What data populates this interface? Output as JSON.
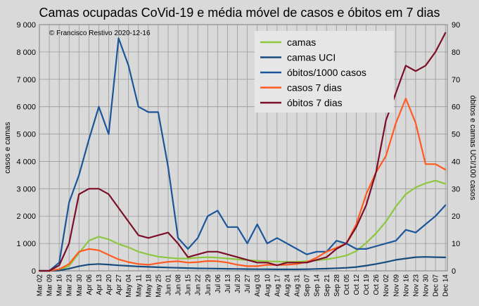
{
  "chart_data": {
    "type": "line",
    "title": "Camas ocupadas CoVid-19 e média móvel de casos e óbitos em 7 dias",
    "credit": "© Francisco Restivo 2020-12-16",
    "ylabel_left": "casos e camas",
    "ylabel_right": "óbitos e camas UCI/100 casos",
    "ylim_left": [
      0,
      9000
    ],
    "ylim_right": [
      0,
      90
    ],
    "yticks_left": [
      "0",
      "1 000",
      "2 000",
      "3 000",
      "4 000",
      "5 000",
      "6 000",
      "7 000",
      "8 000",
      "9 000"
    ],
    "yticks_right": [
      "0",
      "10",
      "20",
      "30",
      "40",
      "50",
      "60",
      "70",
      "80",
      "90"
    ],
    "x_dates": [
      "Mar 02",
      "Mar 09",
      "Mar 16",
      "Mar 23",
      "Mar 30",
      "Apr 06",
      "Apr 13",
      "Apr 20",
      "Apr 27",
      "May 04",
      "May 11",
      "May 18",
      "May 25",
      "Jun 01",
      "Jun 08",
      "Jun 15",
      "Jun 22",
      "Jun 29",
      "Jul 06",
      "Jul 13",
      "Jul 20",
      "Jul 27",
      "Aug 03",
      "Aug 10",
      "Aug 17",
      "Aug 24",
      "Aug 31",
      "Sep 07",
      "Sep 14",
      "Sep 21",
      "Sep 28",
      "Oct 05",
      "Oct 12",
      "Oct 19",
      "Oct 26",
      "Nov 02",
      "Nov 09",
      "Nov 16",
      "Nov 23",
      "Nov 30",
      "Dec 07",
      "Dec 14"
    ],
    "grid": true,
    "legend_position": "top-right",
    "series": [
      {
        "name": "camas",
        "axis": "left",
        "color": "#8dc63f",
        "values": [
          0,
          0,
          15,
          180,
          650,
          1100,
          1250,
          1150,
          980,
          860,
          700,
          600,
          520,
          480,
          450,
          450,
          480,
          500,
          480,
          450,
          420,
          390,
          370,
          350,
          340,
          330,
          330,
          350,
          380,
          420,
          480,
          560,
          720,
          1020,
          1370,
          1800,
          2350,
          2800,
          3050,
          3200,
          3300,
          3180
        ]
      },
      {
        "name": "camas UCI",
        "axis": "left",
        "color": "#164b7e",
        "values": [
          0,
          0,
          10,
          80,
          170,
          230,
          250,
          230,
          200,
          180,
          160,
          145,
          130,
          120,
          110,
          100,
          90,
          85,
          80,
          75,
          70,
          65,
          60,
          58,
          55,
          55,
          55,
          60,
          70,
          80,
          95,
          110,
          140,
          190,
          250,
          320,
          400,
          450,
          500,
          510,
          500,
          490
        ]
      },
      {
        "name": "óbitos/1000 casos",
        "axis": "right",
        "color": "#1a5699",
        "values": [
          0,
          0,
          3,
          25,
          35,
          48,
          60,
          50,
          85,
          75,
          60,
          58,
          58,
          38,
          12,
          8,
          12,
          20,
          22,
          16,
          16,
          10,
          17,
          10,
          12,
          10,
          8,
          6,
          7,
          7,
          11,
          10,
          8,
          8,
          9,
          10,
          11,
          15,
          14,
          17,
          20,
          24
        ]
      },
      {
        "name": "casos 7 dias",
        "axis": "left",
        "color": "#ff5a1f",
        "values": [
          0,
          0,
          60,
          250,
          700,
          800,
          750,
          580,
          420,
          320,
          250,
          220,
          280,
          330,
          350,
          300,
          320,
          360,
          350,
          300,
          220,
          170,
          170,
          220,
          210,
          220,
          250,
          320,
          480,
          700,
          840,
          1000,
          1700,
          2800,
          3600,
          4200,
          5400,
          6300,
          5400,
          3900,
          3900,
          3700
        ]
      },
      {
        "name": "óbitos 7 dias",
        "axis": "right",
        "color": "#7a0f27",
        "values": [
          0,
          0,
          2,
          10,
          28,
          30,
          30,
          28,
          23,
          18,
          13,
          12,
          13,
          14,
          10,
          5,
          6,
          7,
          7,
          6,
          5,
          4,
          3,
          3,
          2,
          3,
          3,
          3,
          4,
          5,
          8,
          10,
          16,
          24,
          36,
          55,
          65,
          75,
          73,
          75,
          80,
          87
        ]
      }
    ]
  }
}
